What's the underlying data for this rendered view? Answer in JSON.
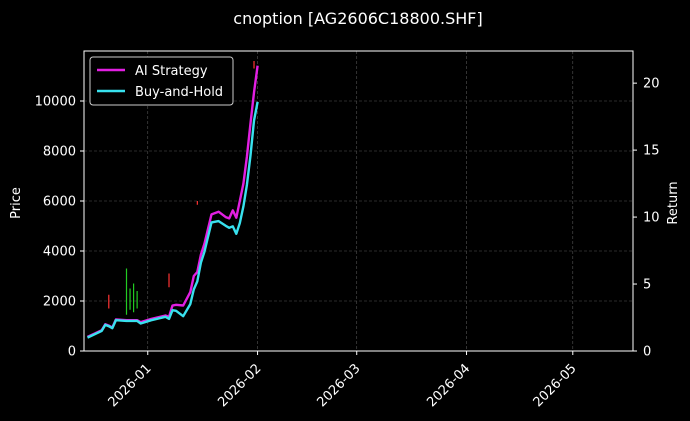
{
  "chart_data": {
    "type": "line",
    "title": "cnoption [AG2606C18800.SHF]",
    "ylabel": "Price",
    "y2label": "Return",
    "ylim": [
      0,
      12000
    ],
    "y2lim": [
      0,
      22.4
    ],
    "xlim": [
      "2025-12-14",
      "2026-05-18"
    ],
    "yticks": [
      0,
      2000,
      4000,
      6000,
      8000,
      10000
    ],
    "y2ticks": [
      0,
      5,
      10,
      15,
      20
    ],
    "xticks": [
      "2026-01-01",
      "2026-02-01",
      "2026-03-01",
      "2026-04-01",
      "2026-05-01"
    ],
    "xtick_labels": [
      "2026-01",
      "2026-02",
      "2026-03",
      "2026-04",
      "2026-05"
    ],
    "grid": true,
    "legend_position": "top-left",
    "background": "#000000",
    "series": [
      {
        "name": "AI Strategy",
        "color": "#e21fe2",
        "axis": "right",
        "points": [
          [
            "2025-12-15",
            1.05
          ],
          [
            "2025-12-17",
            1.3
          ],
          [
            "2025-12-19",
            1.55
          ],
          [
            "2025-12-20",
            2.0
          ],
          [
            "2025-12-21",
            1.9
          ],
          [
            "2025-12-22",
            1.75
          ],
          [
            "2025-12-23",
            2.35
          ],
          [
            "2025-12-26",
            2.3
          ],
          [
            "2025-12-29",
            2.3
          ],
          [
            "2025-12-30",
            2.15
          ],
          [
            "2026-01-02",
            2.4
          ],
          [
            "2026-01-06",
            2.65
          ],
          [
            "2026-01-07",
            2.55
          ],
          [
            "2026-01-08",
            3.4
          ],
          [
            "2026-01-09",
            3.45
          ],
          [
            "2026-01-11",
            3.4
          ],
          [
            "2026-01-13",
            4.4
          ],
          [
            "2026-01-14",
            5.6
          ],
          [
            "2026-01-15",
            5.9
          ],
          [
            "2026-01-16",
            7.2
          ],
          [
            "2026-01-17",
            8.0
          ],
          [
            "2026-01-19",
            10.2
          ],
          [
            "2026-01-21",
            10.4
          ],
          [
            "2026-01-23",
            10.0
          ],
          [
            "2026-01-24",
            9.9
          ],
          [
            "2026-01-25",
            10.5
          ],
          [
            "2026-01-26",
            9.95
          ],
          [
            "2026-01-27",
            11.2
          ],
          [
            "2026-01-28",
            12.5
          ],
          [
            "2026-01-29",
            14.5
          ],
          [
            "2026-01-30",
            17.0
          ],
          [
            "2026-01-31",
            19.3
          ],
          [
            "2026-02-01",
            21.3
          ]
        ]
      },
      {
        "name": "Buy-and-Hold",
        "color": "#38e1ee",
        "axis": "right",
        "points": [
          [
            "2025-12-15",
            1.0
          ],
          [
            "2025-12-17",
            1.25
          ],
          [
            "2025-12-19",
            1.5
          ],
          [
            "2025-12-20",
            1.95
          ],
          [
            "2025-12-21",
            1.85
          ],
          [
            "2025-12-22",
            1.7
          ],
          [
            "2025-12-23",
            2.3
          ],
          [
            "2025-12-26",
            2.25
          ],
          [
            "2025-12-29",
            2.25
          ],
          [
            "2025-12-30",
            2.05
          ],
          [
            "2026-01-02",
            2.3
          ],
          [
            "2026-01-06",
            2.55
          ],
          [
            "2026-01-07",
            2.4
          ],
          [
            "2026-01-08",
            3.05
          ],
          [
            "2026-01-09",
            3.0
          ],
          [
            "2026-01-11",
            2.6
          ],
          [
            "2026-01-13",
            3.5
          ],
          [
            "2026-01-14",
            4.6
          ],
          [
            "2026-01-15",
            5.2
          ],
          [
            "2026-01-16",
            6.6
          ],
          [
            "2026-01-17",
            7.4
          ],
          [
            "2026-01-19",
            9.6
          ],
          [
            "2026-01-21",
            9.7
          ],
          [
            "2026-01-23",
            9.35
          ],
          [
            "2026-01-24",
            9.2
          ],
          [
            "2026-01-25",
            9.3
          ],
          [
            "2026-01-26",
            8.75
          ],
          [
            "2026-01-27",
            9.55
          ],
          [
            "2026-01-28",
            10.8
          ],
          [
            "2026-01-29",
            12.4
          ],
          [
            "2026-01-30",
            14.6
          ],
          [
            "2026-01-31",
            17.2
          ],
          [
            "2026-02-01",
            18.6
          ]
        ]
      }
    ],
    "price_bars": {
      "axis": "left",
      "up_color": "#ff3333",
      "down_color": "#22cc22",
      "bars": [
        {
          "x": "2025-12-21",
          "low": 1700,
          "high": 2250,
          "dir": "up"
        },
        {
          "x": "2025-12-26",
          "low": 1450,
          "high": 3300,
          "dir": "down"
        },
        {
          "x": "2025-12-27",
          "low": 1650,
          "high": 2500,
          "dir": "down"
        },
        {
          "x": "2025-12-28",
          "low": 1550,
          "high": 2700,
          "dir": "down"
        },
        {
          "x": "2025-12-29",
          "low": 1700,
          "high": 2400,
          "dir": "down"
        },
        {
          "x": "2026-01-07",
          "low": 2550,
          "high": 3100,
          "dir": "up"
        },
        {
          "x": "2026-01-15",
          "low": 5850,
          "high": 6000,
          "dir": "up"
        },
        {
          "x": "2026-01-31",
          "low": 11300,
          "high": 11600,
          "dir": "up"
        }
      ]
    }
  }
}
